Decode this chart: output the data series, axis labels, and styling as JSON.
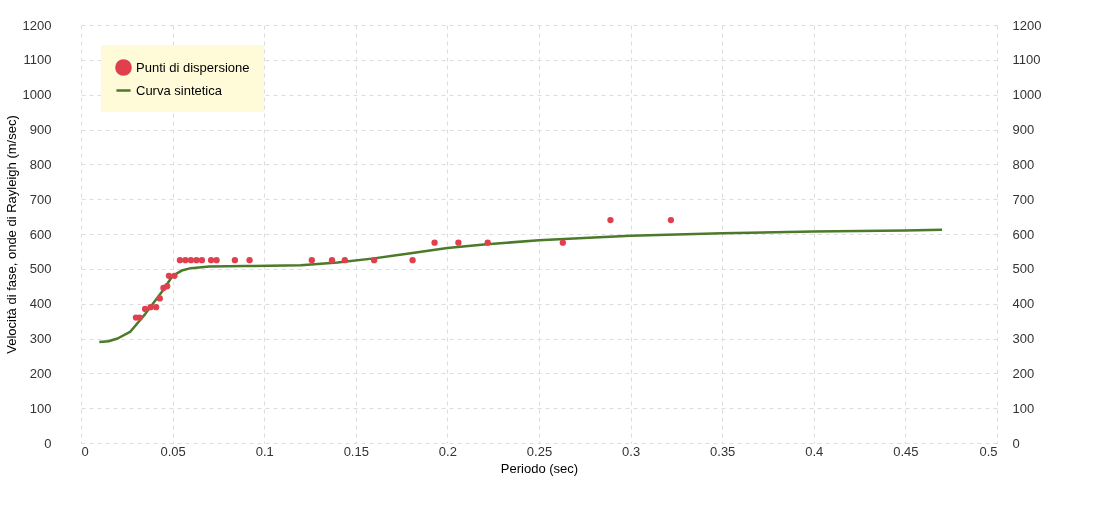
{
  "chart_data": {
    "type": "scatter",
    "xlabel": "Periodo (sec)",
    "ylabel": "Velocità di fase, onde di Rayleigh (m/sec)",
    "xlim": [
      0,
      0.5
    ],
    "xticks": [
      0,
      0.05,
      0.1,
      0.15,
      0.2,
      0.25,
      0.3,
      0.35,
      0.4,
      0.45,
      0.5
    ],
    "ylim": [
      0,
      1200
    ],
    "yticks": [
      0,
      100,
      200,
      300,
      400,
      500,
      600,
      700,
      800,
      900,
      1000,
      1100,
      1200
    ],
    "y2lim": [
      0,
      1200
    ],
    "y2ticks": [
      0,
      100,
      200,
      300,
      400,
      500,
      600,
      700,
      800,
      900,
      1000,
      1100,
      1200
    ],
    "grid": true,
    "legend": "top left",
    "series": [
      {
        "name": "Punti di dispersione",
        "type": "scatter",
        "marker": "circle",
        "color": "#e0404e",
        "x": [
          0.03,
          0.032,
          0.035,
          0.038,
          0.041,
          0.043,
          0.045,
          0.047,
          0.048,
          0.051,
          0.054,
          0.057,
          0.06,
          0.063,
          0.066,
          0.071,
          0.074,
          0.084,
          0.092,
          0.126,
          0.137,
          0.144,
          0.16,
          0.181,
          0.193,
          0.206,
          0.222,
          0.263,
          0.289,
          0.322
        ],
        "values": [
          360,
          360,
          385,
          390,
          390,
          415,
          445,
          450,
          480,
          480,
          525,
          525,
          525,
          525,
          525,
          525,
          525,
          525,
          525,
          525,
          525,
          525,
          525,
          525,
          575,
          575,
          575,
          575,
          640,
          640
        ]
      },
      {
        "name": "Curva sintetica",
        "type": "line",
        "line_style": "solid",
        "color": "#4a7a2a",
        "x": [
          0.01,
          0.015,
          0.02,
          0.027,
          0.035,
          0.045,
          0.05,
          0.055,
          0.06,
          0.07,
          0.09,
          0.12,
          0.14,
          0.16,
          0.18,
          0.2,
          0.22,
          0.25,
          0.28,
          0.3,
          0.35,
          0.4,
          0.45,
          0.47
        ],
        "values": [
          290,
          292,
          300,
          320,
          370,
          440,
          480,
          495,
          502,
          507,
          508,
          510,
          518,
          530,
          545,
          560,
          570,
          582,
          590,
          595,
          602,
          607,
          610,
          612
        ]
      }
    ]
  }
}
